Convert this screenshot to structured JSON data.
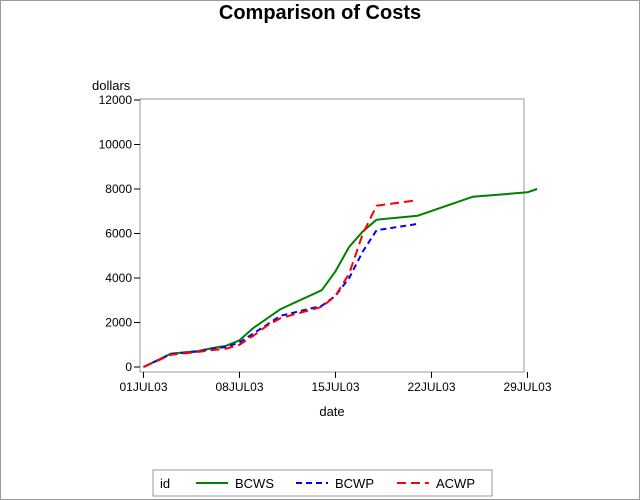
{
  "chart_data": {
    "type": "line",
    "title": "Comparison of Costs",
    "xlabel": "date",
    "ylabel": "dollars",
    "ylim": [
      0,
      12000
    ],
    "yticks": [
      0,
      2000,
      4000,
      6000,
      8000,
      10000,
      12000
    ],
    "xlim": [
      0,
      29
    ],
    "xticks": [
      {
        "value": 0,
        "label": "01JUL03"
      },
      {
        "value": 7,
        "label": "08JUL03"
      },
      {
        "value": 14,
        "label": "15JUL03"
      },
      {
        "value": 21,
        "label": "22JUL03"
      },
      {
        "value": 28,
        "label": "29JUL03"
      }
    ],
    "legend_title": "id",
    "legend_position": "bottom",
    "series": [
      {
        "name": "BCWS",
        "color": "#008000",
        "dash": "solid",
        "x": [
          0,
          2,
          4,
          5,
          6,
          7,
          8,
          10,
          13,
          14,
          15,
          16,
          17,
          20,
          24,
          28,
          28.7
        ],
        "y": [
          0,
          600,
          720,
          850,
          950,
          1200,
          1750,
          2600,
          3450,
          4300,
          5400,
          6100,
          6620,
          6800,
          7650,
          7850,
          8000
        ]
      },
      {
        "name": "BCWP",
        "color": "#0000FF",
        "dash": "dashed",
        "x": [
          0,
          2,
          4,
          5,
          6,
          7,
          8,
          9,
          10,
          13,
          14,
          15,
          16,
          17,
          20
        ],
        "y": [
          0,
          580,
          700,
          820,
          900,
          1100,
          1500,
          1900,
          2300,
          2750,
          3200,
          4000,
          5200,
          6150,
          6430
        ]
      },
      {
        "name": "ACWP",
        "color": "#FF0000",
        "dash": "dashed",
        "x": [
          0,
          2,
          4,
          5,
          6,
          7,
          8,
          9,
          10,
          13,
          14,
          15,
          16,
          17,
          20
        ],
        "y": [
          0,
          550,
          680,
          760,
          820,
          1000,
          1400,
          1850,
          2200,
          2700,
          3200,
          4200,
          6000,
          7250,
          7500
        ]
      }
    ]
  }
}
